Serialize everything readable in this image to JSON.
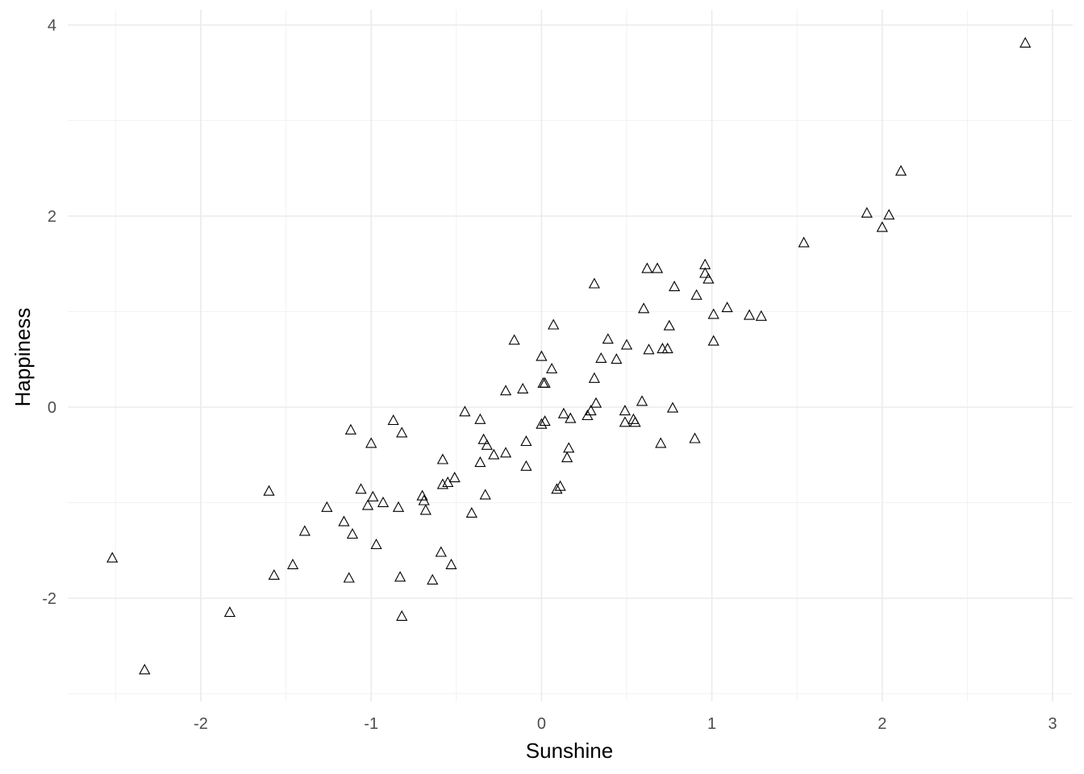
{
  "chart_data": {
    "type": "scatter",
    "title": "",
    "xlabel": "Sunshine",
    "ylabel": "Happiness",
    "xlim": [
      -2.75,
      3.1
    ],
    "ylim": [
      -3.0,
      4.15
    ],
    "x_ticks": [
      -2,
      -1,
      0,
      1,
      2,
      3
    ],
    "x_tick_labels": [
      "-2",
      "-1",
      "0",
      "1",
      "2",
      "3"
    ],
    "y_ticks": [
      -2,
      0,
      2,
      4
    ],
    "y_tick_labels": [
      "-2",
      "0",
      "2",
      "4"
    ],
    "grid": true,
    "marker": "open-triangle",
    "marker_color": "#000000",
    "points": [
      {
        "x": 2.84,
        "y": 3.81
      },
      {
        "x": 2.11,
        "y": 2.47
      },
      {
        "x": 1.91,
        "y": 2.03
      },
      {
        "x": 2.04,
        "y": 2.01
      },
      {
        "x": 2.0,
        "y": 1.88
      },
      {
        "x": 1.54,
        "y": 1.72
      },
      {
        "x": 0.96,
        "y": 1.49
      },
      {
        "x": 0.62,
        "y": 1.45
      },
      {
        "x": 0.68,
        "y": 1.45
      },
      {
        "x": 0.96,
        "y": 1.4
      },
      {
        "x": 0.98,
        "y": 1.34
      },
      {
        "x": 0.31,
        "y": 1.29
      },
      {
        "x": 0.78,
        "y": 1.26
      },
      {
        "x": 0.91,
        "y": 1.17
      },
      {
        "x": 1.09,
        "y": 1.04
      },
      {
        "x": 0.6,
        "y": 1.03
      },
      {
        "x": 1.01,
        "y": 0.97
      },
      {
        "x": 1.22,
        "y": 0.96
      },
      {
        "x": 1.29,
        "y": 0.95
      },
      {
        "x": 0.07,
        "y": 0.86
      },
      {
        "x": 0.75,
        "y": 0.85
      },
      {
        "x": -0.16,
        "y": 0.7
      },
      {
        "x": 0.39,
        "y": 0.71
      },
      {
        "x": 1.01,
        "y": 0.69
      },
      {
        "x": 0.5,
        "y": 0.65
      },
      {
        "x": 0.63,
        "y": 0.6
      },
      {
        "x": 0.71,
        "y": 0.61
      },
      {
        "x": 0.74,
        "y": 0.61
      },
      {
        "x": 0.0,
        "y": 0.53
      },
      {
        "x": 0.35,
        "y": 0.51
      },
      {
        "x": 0.44,
        "y": 0.5
      },
      {
        "x": 0.06,
        "y": 0.4
      },
      {
        "x": 0.31,
        "y": 0.3
      },
      {
        "x": 0.01,
        "y": 0.25
      },
      {
        "x": 0.02,
        "y": 0.25
      },
      {
        "x": -0.11,
        "y": 0.19
      },
      {
        "x": -0.21,
        "y": 0.17
      },
      {
        "x": 0.59,
        "y": 0.06
      },
      {
        "x": 0.32,
        "y": 0.04
      },
      {
        "x": 0.77,
        "y": -0.01
      },
      {
        "x": 0.29,
        "y": -0.04
      },
      {
        "x": 0.49,
        "y": -0.04
      },
      {
        "x": -0.45,
        "y": -0.05
      },
      {
        "x": 0.13,
        "y": -0.07
      },
      {
        "x": 0.27,
        "y": -0.09
      },
      {
        "x": 0.17,
        "y": -0.12
      },
      {
        "x": -0.36,
        "y": -0.13
      },
      {
        "x": 0.54,
        "y": -0.13
      },
      {
        "x": -0.87,
        "y": -0.14
      },
      {
        "x": 0.02,
        "y": -0.15
      },
      {
        "x": 0.49,
        "y": -0.16
      },
      {
        "x": 0.55,
        "y": -0.16
      },
      {
        "x": 0.0,
        "y": -0.18
      },
      {
        "x": -1.12,
        "y": -0.24
      },
      {
        "x": -0.82,
        "y": -0.27
      },
      {
        "x": 0.9,
        "y": -0.33
      },
      {
        "x": -0.34,
        "y": -0.34
      },
      {
        "x": -0.09,
        "y": -0.36
      },
      {
        "x": -1.0,
        "y": -0.38
      },
      {
        "x": 0.7,
        "y": -0.38
      },
      {
        "x": -0.32,
        "y": -0.4
      },
      {
        "x": 0.16,
        "y": -0.43
      },
      {
        "x": -0.21,
        "y": -0.48
      },
      {
        "x": -0.28,
        "y": -0.5
      },
      {
        "x": 0.15,
        "y": -0.53
      },
      {
        "x": -0.58,
        "y": -0.55
      },
      {
        "x": -0.36,
        "y": -0.58
      },
      {
        "x": -0.09,
        "y": -0.62
      },
      {
        "x": -0.51,
        "y": -0.74
      },
      {
        "x": -0.55,
        "y": -0.79
      },
      {
        "x": -0.58,
        "y": -0.81
      },
      {
        "x": 0.11,
        "y": -0.83
      },
      {
        "x": 0.09,
        "y": -0.86
      },
      {
        "x": -1.6,
        "y": -0.88
      },
      {
        "x": -1.06,
        "y": -0.86
      },
      {
        "x": -0.33,
        "y": -0.92
      },
      {
        "x": -0.7,
        "y": -0.93
      },
      {
        "x": -0.99,
        "y": -0.94
      },
      {
        "x": -0.69,
        "y": -0.98
      },
      {
        "x": -0.93,
        "y": -1.0
      },
      {
        "x": -1.02,
        "y": -1.03
      },
      {
        "x": -0.84,
        "y": -1.05
      },
      {
        "x": -1.26,
        "y": -1.05
      },
      {
        "x": -0.68,
        "y": -1.08
      },
      {
        "x": -0.41,
        "y": -1.11
      },
      {
        "x": -1.16,
        "y": -1.2
      },
      {
        "x": -1.39,
        "y": -1.3
      },
      {
        "x": -1.11,
        "y": -1.33
      },
      {
        "x": -0.97,
        "y": -1.44
      },
      {
        "x": -0.59,
        "y": -1.52
      },
      {
        "x": -2.52,
        "y": -1.58
      },
      {
        "x": -0.53,
        "y": -1.65
      },
      {
        "x": -1.46,
        "y": -1.65
      },
      {
        "x": -1.57,
        "y": -1.76
      },
      {
        "x": -0.83,
        "y": -1.78
      },
      {
        "x": -1.13,
        "y": -1.79
      },
      {
        "x": -0.64,
        "y": -1.81
      },
      {
        "x": -1.83,
        "y": -2.15
      },
      {
        "x": -0.82,
        "y": -2.19
      },
      {
        "x": -2.33,
        "y": -2.75
      }
    ]
  }
}
